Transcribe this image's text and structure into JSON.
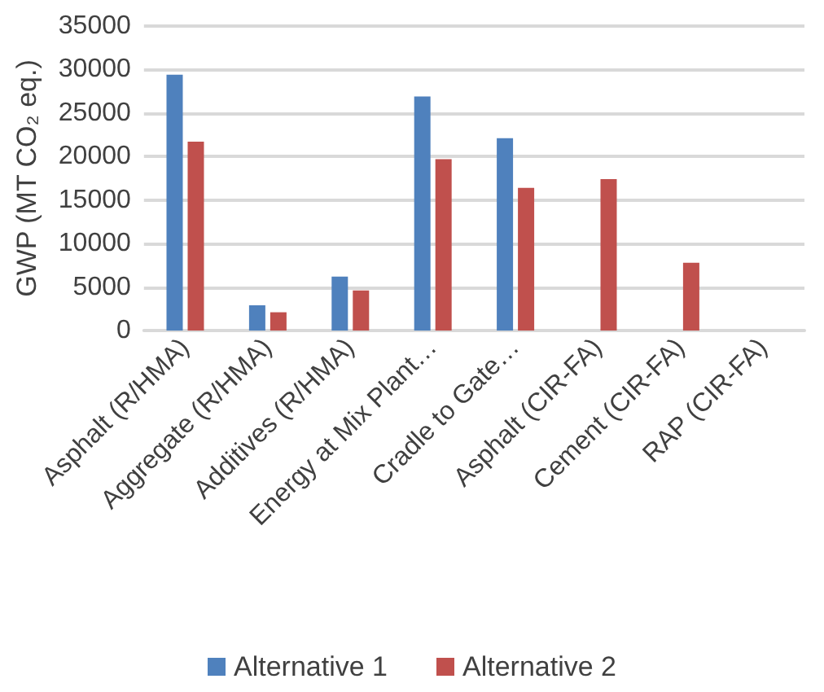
{
  "chart_data": {
    "type": "bar",
    "ylabel": "GWP (MT CO₂ eq.)",
    "categories": [
      "Asphalt (R/HMA)",
      "Aggregate (R/HMA)",
      "Additives (R/HMA)",
      "Energy at Mix Plant…",
      "Cradle to Gate…",
      "Asphalt (CIR-FA)",
      "Cement (CIR-FA)",
      "RAP (CIR-FA)"
    ],
    "series": [
      {
        "name": "Alternative 1",
        "color": "#4f81bd",
        "values": [
          29400,
          2900,
          6200,
          26900,
          22100,
          null,
          null,
          null
        ]
      },
      {
        "name": "Alternative 2",
        "color": "#c0504d",
        "values": [
          21700,
          2100,
          4600,
          19700,
          16400,
          17400,
          7800,
          null
        ]
      }
    ],
    "ylim": [
      0,
      35000
    ],
    "yticks": [
      0,
      5000,
      10000,
      15000,
      20000,
      25000,
      30000,
      35000
    ],
    "grid": "y",
    "legend": "bottom"
  }
}
